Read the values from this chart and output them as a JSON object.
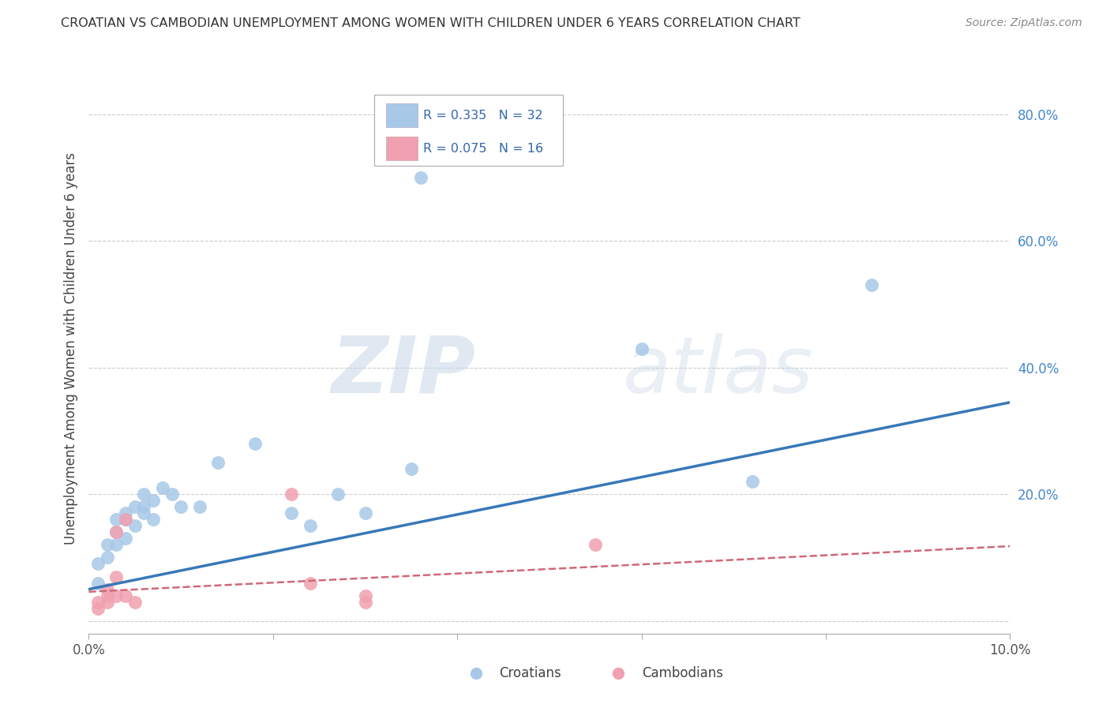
{
  "title": "CROATIAN VS CAMBODIAN UNEMPLOYMENT AMONG WOMEN WITH CHILDREN UNDER 6 YEARS CORRELATION CHART",
  "source": "Source: ZipAtlas.com",
  "ylabel": "Unemployment Among Women with Children Under 6 years",
  "xlabel_croatians": "Croatians",
  "xlabel_cambodians": "Cambodians",
  "xlim": [
    0.0,
    0.1
  ],
  "ylim": [
    -0.02,
    0.88
  ],
  "yticks": [
    0.0,
    0.2,
    0.4,
    0.6,
    0.8
  ],
  "ytick_labels": [
    "",
    "20.0%",
    "40.0%",
    "60.0%",
    "80.0%"
  ],
  "croatian_R": 0.335,
  "croatian_N": 32,
  "cambodian_R": 0.075,
  "cambodian_N": 16,
  "croatian_color": "#a8c8e8",
  "cambodian_color": "#f0a0b0",
  "croatian_line_color": "#3878b8",
  "cambodian_line_color": "#d06878",
  "watermark_zip": "ZIP",
  "watermark_atlas": "atlas",
  "background_color": "#ffffff",
  "croatians_x": [
    0.001,
    0.001,
    0.002,
    0.002,
    0.003,
    0.003,
    0.003,
    0.004,
    0.004,
    0.004,
    0.005,
    0.005,
    0.006,
    0.006,
    0.006,
    0.007,
    0.007,
    0.008,
    0.009,
    0.01,
    0.012,
    0.014,
    0.018,
    0.022,
    0.024,
    0.027,
    0.03,
    0.035,
    0.036,
    0.06,
    0.072,
    0.085
  ],
  "croatians_y": [
    0.06,
    0.09,
    0.1,
    0.12,
    0.12,
    0.14,
    0.16,
    0.13,
    0.16,
    0.17,
    0.15,
    0.18,
    0.17,
    0.18,
    0.2,
    0.16,
    0.19,
    0.21,
    0.2,
    0.18,
    0.18,
    0.25,
    0.28,
    0.17,
    0.15,
    0.2,
    0.17,
    0.24,
    0.7,
    0.43,
    0.22,
    0.53
  ],
  "cambodians_x": [
    0.001,
    0.001,
    0.002,
    0.002,
    0.002,
    0.003,
    0.003,
    0.003,
    0.004,
    0.004,
    0.005,
    0.022,
    0.024,
    0.03,
    0.03,
    0.055
  ],
  "cambodians_y": [
    0.02,
    0.03,
    0.03,
    0.04,
    0.05,
    0.04,
    0.07,
    0.14,
    0.04,
    0.16,
    0.03,
    0.2,
    0.06,
    0.04,
    0.03,
    0.12
  ],
  "croatian_line_x0": 0.0,
  "croatian_line_y0": 0.05,
  "croatian_line_x1": 0.1,
  "croatian_line_y1": 0.345,
  "cambodian_line_x0": 0.0,
  "cambodian_line_y0": 0.046,
  "cambodian_line_x1": 0.1,
  "cambodian_line_y1": 0.118
}
